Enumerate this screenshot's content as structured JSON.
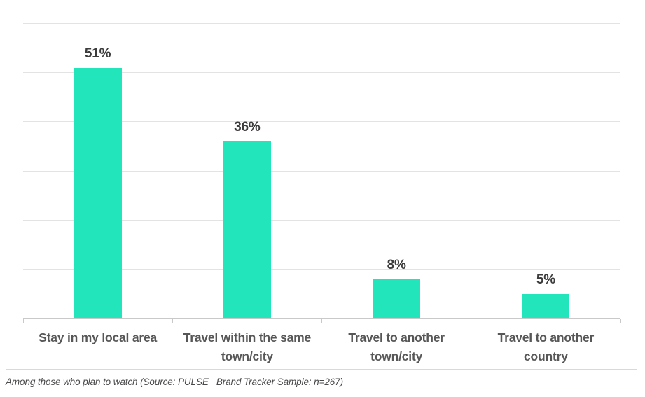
{
  "figure": {
    "caption": "Among those who plan to watch (Source: PULSE_ Brand Tracker Sample: n=267)"
  },
  "chart_data": {
    "type": "bar",
    "categories": [
      "Stay in my local area",
      "Travel within the same town/city",
      "Travel to another town/city",
      "Travel to another country"
    ],
    "values": [
      51,
      36,
      8,
      5
    ],
    "value_labels": [
      "51%",
      "36%",
      "8%",
      "5%"
    ],
    "title": "",
    "xlabel": "",
    "ylabel": "",
    "ylim": [
      0,
      60
    ],
    "gridline_values": [
      10,
      20,
      30,
      40,
      50,
      60
    ],
    "grid": true,
    "legend": false,
    "bar_color": "#23e5bc",
    "value_label_color": "#3c3c3c",
    "category_label_color": "#575757",
    "gridline_color": "#e3e3e3",
    "axis_color": "#c9c9c9",
    "box_border_color": "#d9d9d9"
  }
}
